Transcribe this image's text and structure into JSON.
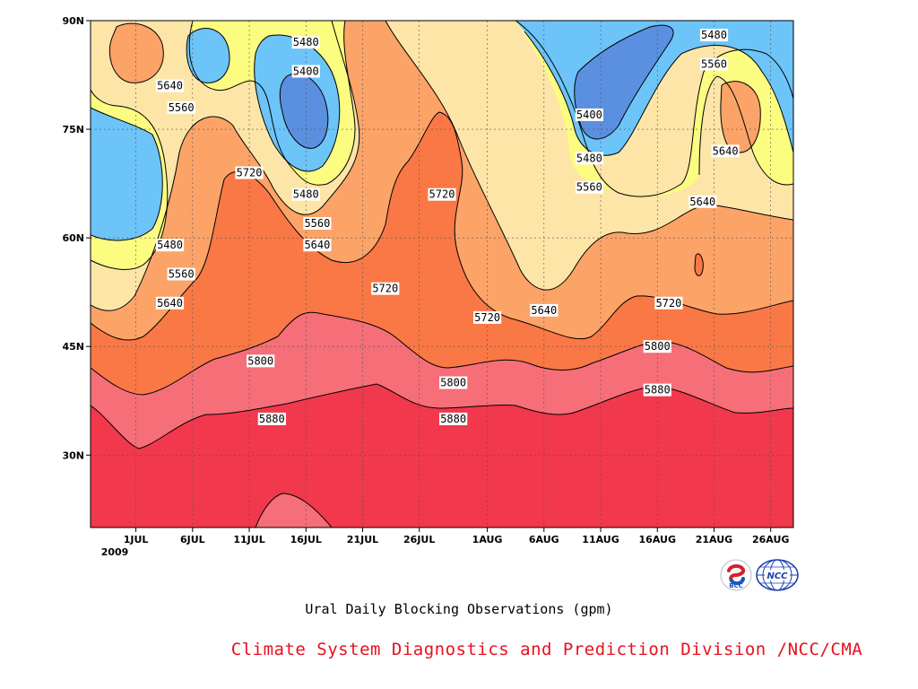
{
  "chart_data": {
    "type": "heatmap",
    "title": "Ural Daily Blocking Observations (gpm)",
    "xlabel": "",
    "ylabel": "",
    "x_ticks": [
      "1JUL",
      "6JUL",
      "11JUL",
      "16JUL",
      "21JUL",
      "26JUL",
      "1AUG",
      "6AUG",
      "11AUG",
      "16AUG",
      "21AUG",
      "26AUG"
    ],
    "x_year_label": "2009",
    "y_ticks": [
      "30N",
      "45N",
      "60N",
      "75N",
      "90N"
    ],
    "x_range": [
      "2009-06-27",
      "2009-08-28"
    ],
    "y_range_deg": [
      20,
      90
    ],
    "grid": "dotted",
    "contour_levels": [
      5400,
      5480,
      5560,
      5640,
      5720,
      5800,
      5880
    ],
    "level_colors": {
      "below_5400": "#5b8fe0",
      "5400_5480": "#6cc4f8",
      "5480_5560": "#fcfc80",
      "5560_5640": "#fde5a8",
      "5640_5720": "#fca368",
      "5720_5800": "#fa7845",
      "5800_5880": "#f56e78",
      "above_5880": "#f2384c"
    },
    "contour_labels": [
      {
        "value": "5480",
        "date": "2009-07-16",
        "lat": 87
      },
      {
        "value": "5400",
        "date": "2009-07-16",
        "lat": 83
      },
      {
        "value": "5640",
        "date": "2009-07-04",
        "lat": 81
      },
      {
        "value": "5560",
        "date": "2009-07-05",
        "lat": 78
      },
      {
        "value": "5720",
        "date": "2009-07-11",
        "lat": 69
      },
      {
        "value": "5480",
        "date": "2009-07-16",
        "lat": 66
      },
      {
        "value": "5560",
        "date": "2009-07-17",
        "lat": 62
      },
      {
        "value": "5640",
        "date": "2009-07-17",
        "lat": 59
      },
      {
        "value": "5480",
        "date": "2009-07-04",
        "lat": 59
      },
      {
        "value": "5560",
        "date": "2009-07-05",
        "lat": 55
      },
      {
        "value": "5640",
        "date": "2009-07-04",
        "lat": 51
      },
      {
        "value": "5720",
        "date": "2009-07-23",
        "lat": 53
      },
      {
        "value": "5720",
        "date": "2009-07-28",
        "lat": 66
      },
      {
        "value": "5800",
        "date": "2009-07-12",
        "lat": 43
      },
      {
        "value": "5880",
        "date": "2009-07-13",
        "lat": 35
      },
      {
        "value": "5720",
        "date": "2009-08-01",
        "lat": 49
      },
      {
        "value": "5800",
        "date": "2009-07-29",
        "lat": 40
      },
      {
        "value": "5880",
        "date": "2009-07-29",
        "lat": 35
      },
      {
        "value": "5640",
        "date": "2009-08-06",
        "lat": 50
      },
      {
        "value": "5400",
        "date": "2009-08-10",
        "lat": 77
      },
      {
        "value": "5480",
        "date": "2009-08-10",
        "lat": 71
      },
      {
        "value": "5560",
        "date": "2009-08-10",
        "lat": 67
      },
      {
        "value": "5720",
        "date": "2009-08-17",
        "lat": 51
      },
      {
        "value": "5800",
        "date": "2009-08-16",
        "lat": 45
      },
      {
        "value": "5880",
        "date": "2009-08-16",
        "lat": 39
      },
      {
        "value": "5480",
        "date": "2009-08-21",
        "lat": 88
      },
      {
        "value": "5560",
        "date": "2009-08-21",
        "lat": 84
      },
      {
        "value": "5640",
        "date": "2009-08-22",
        "lat": 72
      },
      {
        "value": "5640",
        "date": "2009-08-20",
        "lat": 65
      }
    ]
  },
  "credit": "Climate System Diagnostics and Prediction Division /NCC/CMA",
  "logos": {
    "bcc_text": "BCC",
    "ncc_text": "NCC",
    "bcc_colors": [
      "#d6212b",
      "#1b54b8"
    ],
    "ncc_color": "#1a3fb0"
  }
}
